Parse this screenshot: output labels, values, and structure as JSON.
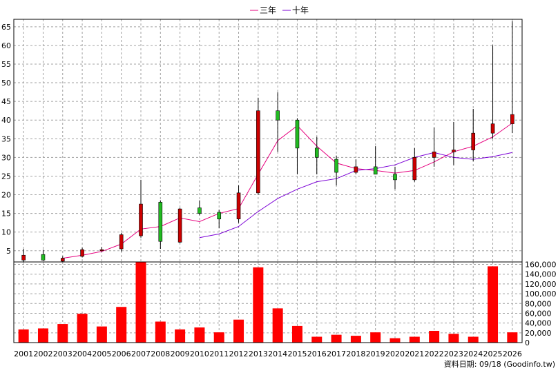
{
  "legend": [
    {
      "label": "三年",
      "color": "#e6007e"
    },
    {
      "label": "十年",
      "color": "#7b00d6"
    }
  ],
  "source_note": "資料日期: 09/18  (Goodinfo.tw)",
  "colors": {
    "up_candle": "#cc0000",
    "down_candle": "#22bb22",
    "volume_bar": "#ff0000",
    "grid": "#a0a0a0",
    "wick": "#000000"
  },
  "chart_data": [
    {
      "type": "candlestick",
      "title": "",
      "categories": [
        "2001",
        "2002",
        "2003",
        "2004",
        "2005",
        "2006",
        "2007",
        "2008",
        "2009",
        "2010",
        "2011",
        "2012",
        "2013",
        "2014",
        "2015",
        "2016",
        "2017",
        "2018",
        "2019",
        "2020",
        "2021",
        "2022",
        "2023",
        "2024",
        "2025",
        "2026"
      ],
      "ylim": [
        2,
        67
      ],
      "yticks": [
        5,
        10,
        15,
        20,
        25,
        30,
        35,
        40,
        45,
        50,
        55,
        60,
        65
      ],
      "grid": true,
      "candles": [
        {
          "year": "2001",
          "open": 2.5,
          "high": 5.5,
          "low": 2.0,
          "close": 3.8,
          "dir": "up"
        },
        {
          "year": "2002",
          "open": 4.0,
          "high": 5.3,
          "low": 2.3,
          "close": 2.5,
          "dir": "down"
        },
        {
          "year": "2003",
          "open": 2.2,
          "high": 3.5,
          "low": 2.0,
          "close": 3.0,
          "dir": "up"
        },
        {
          "year": "2004",
          "open": 3.5,
          "high": 5.8,
          "low": 3.2,
          "close": 5.3,
          "dir": "up"
        },
        {
          "year": "2005",
          "open": 5.0,
          "high": 6.0,
          "low": 4.8,
          "close": 5.3,
          "dir": "up"
        },
        {
          "year": "2006",
          "open": 5.5,
          "high": 9.8,
          "low": 4.8,
          "close": 9.3,
          "dir": "up"
        },
        {
          "year": "2007",
          "open": 9.0,
          "high": 24.0,
          "low": 8.5,
          "close": 17.5,
          "dir": "up"
        },
        {
          "year": "2008",
          "open": 18.0,
          "high": 18.5,
          "low": 5.5,
          "close": 7.5,
          "dir": "down"
        },
        {
          "year": "2009",
          "open": 7.3,
          "high": 16.5,
          "low": 7.0,
          "close": 16.2,
          "dir": "up"
        },
        {
          "year": "2010",
          "open": 16.5,
          "high": 18.5,
          "low": 14.5,
          "close": 15.0,
          "dir": "down"
        },
        {
          "year": "2011",
          "open": 15.3,
          "high": 16.0,
          "low": 11.0,
          "close": 13.5,
          "dir": "down"
        },
        {
          "year": "2012",
          "open": 13.5,
          "high": 22.5,
          "low": 12.5,
          "close": 20.5,
          "dir": "up"
        },
        {
          "year": "2013",
          "open": 20.5,
          "high": 46.0,
          "low": 20.0,
          "close": 42.5,
          "dir": "up"
        },
        {
          "year": "2014",
          "open": 42.5,
          "high": 47.5,
          "low": 31.5,
          "close": 40.0,
          "dir": "down"
        },
        {
          "year": "2015",
          "open": 40.0,
          "high": 40.5,
          "low": 25.5,
          "close": 32.5,
          "dir": "down"
        },
        {
          "year": "2016",
          "open": 32.5,
          "high": 35.5,
          "low": 25.5,
          "close": 30.0,
          "dir": "down"
        },
        {
          "year": "2017",
          "open": 29.5,
          "high": 30.5,
          "low": 22.5,
          "close": 26.0,
          "dir": "down"
        },
        {
          "year": "2018",
          "open": 26.0,
          "high": 29.5,
          "low": 25.5,
          "close": 27.5,
          "dir": "up"
        },
        {
          "year": "2019",
          "open": 27.5,
          "high": 33.0,
          "low": 25.5,
          "close": 25.5,
          "dir": "down"
        },
        {
          "year": "2020",
          "open": 25.5,
          "high": 27.5,
          "low": 21.5,
          "close": 24.0,
          "dir": "down"
        },
        {
          "year": "2021",
          "open": 24.0,
          "high": 32.5,
          "low": 23.5,
          "close": 30.0,
          "dir": "up"
        },
        {
          "year": "2022",
          "open": 30.0,
          "high": 38.0,
          "low": 27.5,
          "close": 31.5,
          "dir": "up"
        },
        {
          "year": "2023",
          "open": 31.5,
          "high": 39.5,
          "low": 28.0,
          "close": 32.0,
          "dir": "up"
        },
        {
          "year": "2024",
          "open": 32.0,
          "high": 43.0,
          "low": 29.0,
          "close": 36.5,
          "dir": "up"
        },
        {
          "year": "2025",
          "open": 36.5,
          "high": 60.0,
          "low": 35.0,
          "close": 39.0,
          "dir": "up"
        },
        {
          "year": "2026",
          "open": 39.0,
          "high": 66.5,
          "low": 36.5,
          "close": 41.5,
          "dir": "up"
        }
      ],
      "series": [
        {
          "name": "三年",
          "color": "#e6007e",
          "values": [
            null,
            null,
            3.0,
            3.8,
            4.8,
            6.8,
            10.8,
            11.5,
            13.8,
            12.8,
            15.0,
            16.3,
            25.5,
            34.5,
            38.5,
            33.0,
            28.5,
            27.0,
            26.5,
            25.8,
            26.5,
            28.8,
            31.5,
            33.0,
            35.5,
            39.2
          ]
        },
        {
          "name": "十年",
          "color": "#7b00d6",
          "values": [
            null,
            null,
            null,
            null,
            null,
            null,
            null,
            null,
            null,
            8.5,
            9.5,
            11.5,
            15.5,
            19.0,
            21.5,
            23.5,
            24.3,
            26.5,
            27.0,
            28.0,
            30.0,
            31.3,
            30.0,
            29.5,
            30.2,
            31.3
          ]
        }
      ]
    },
    {
      "type": "bar",
      "title": "",
      "categories": [
        "2001",
        "2002",
        "2003",
        "2004",
        "2005",
        "2006",
        "2007",
        "2008",
        "2009",
        "2010",
        "2011",
        "2012",
        "2013",
        "2014",
        "2015",
        "2016",
        "2017",
        "2018",
        "2019",
        "2020",
        "2021",
        "2022",
        "2023",
        "2024",
        "2025",
        "2026"
      ],
      "values": [
        27000,
        29000,
        38000,
        59000,
        33000,
        73000,
        165000,
        43000,
        27000,
        31000,
        21000,
        47000,
        154000,
        70000,
        34000,
        12000,
        16000,
        14000,
        21000,
        9000,
        12000,
        24000,
        18000,
        12000,
        156000,
        21000
      ],
      "ylim": [
        0,
        165000
      ],
      "yticks": [
        0,
        20000,
        40000,
        60000,
        80000,
        100000,
        120000,
        140000,
        160000
      ],
      "ytick_labels": [
        "0",
        "20,000",
        "40,000",
        "60,000",
        "80,000",
        "100,000",
        "120,000",
        "140,000",
        "160,000"
      ],
      "grid": true
    }
  ]
}
